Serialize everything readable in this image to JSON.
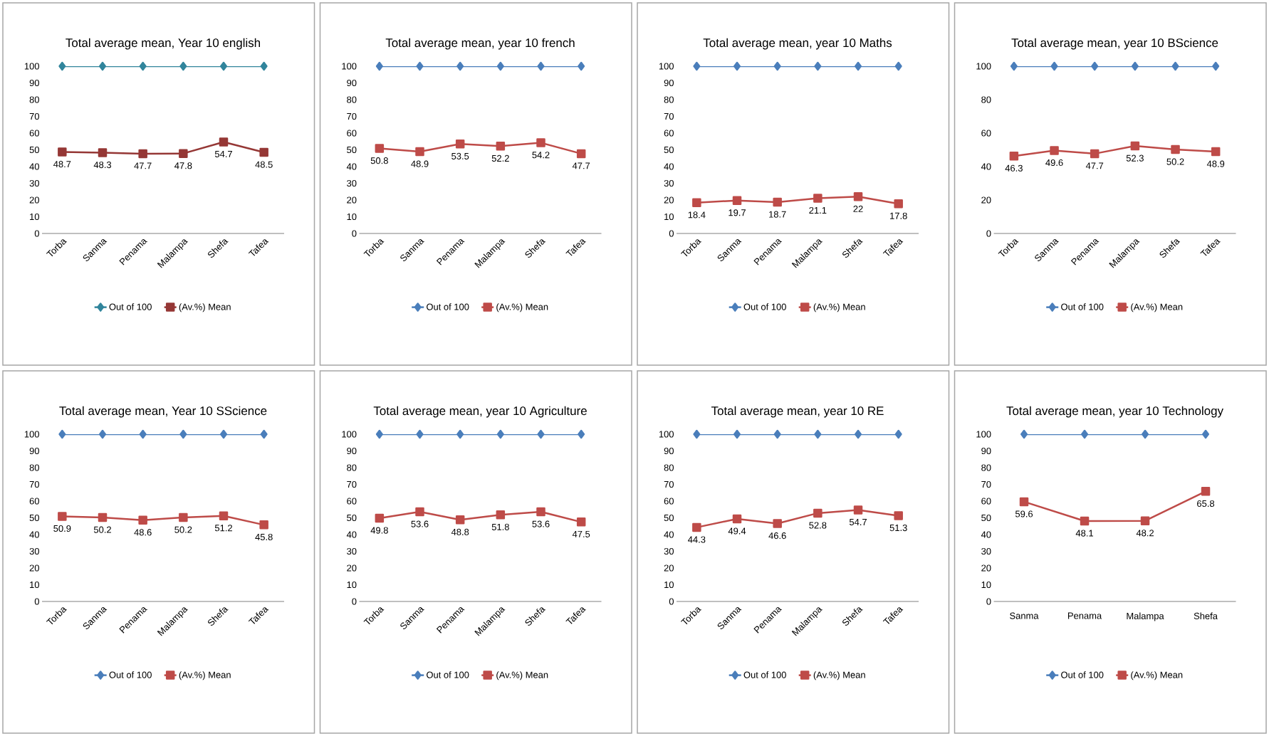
{
  "chart_data": [
    {
      "type": "line",
      "title": "Total average mean, Year 10 english",
      "categories": [
        "Torba",
        "Sanma",
        "Penama",
        "Malampa",
        "Shefa",
        "Tafea"
      ],
      "ylim": [
        0,
        100
      ],
      "yticks": [
        0,
        10,
        20,
        30,
        40,
        50,
        60,
        70,
        80,
        90,
        100
      ],
      "legend": "bottom",
      "series": [
        {
          "name": "Out of 100",
          "color": "#31859c",
          "marker": "diamond",
          "values": [
            100,
            100,
            100,
            100,
            100,
            100
          ]
        },
        {
          "name": "(Av.%) Mean",
          "color": "#953735",
          "marker": "square",
          "values": [
            48.7,
            48.3,
            47.7,
            47.8,
            54.7,
            48.5
          ],
          "value_labels": [
            "48.7",
            "48.3",
            "47.7",
            "47.8",
            "54.7",
            "48.5"
          ]
        }
      ]
    },
    {
      "type": "line",
      "title": "Total average mean, year 10 french",
      "categories": [
        "Torba",
        "Sanma",
        "Penama",
        "Malampa",
        "Shefa",
        "Tafea"
      ],
      "ylim": [
        0,
        100
      ],
      "yticks": [
        0,
        10,
        20,
        30,
        40,
        50,
        60,
        70,
        80,
        90,
        100
      ],
      "legend": "bottom",
      "series": [
        {
          "name": "Out of 100",
          "color": "#4a7ebb",
          "marker": "diamond",
          "values": [
            100,
            100,
            100,
            100,
            100,
            100
          ]
        },
        {
          "name": "(Av.%) Mean",
          "color": "#be4b48",
          "marker": "square",
          "values": [
            50.8,
            48.9,
            53.5,
            52.2,
            54.2,
            47.7
          ],
          "value_labels": [
            "50.8",
            "48.9",
            "53.5",
            "52.2",
            "54.2",
            "47.7"
          ]
        }
      ]
    },
    {
      "type": "line",
      "title": "Total average mean, year 10 Maths",
      "categories": [
        "Torba",
        "Sanma",
        "Penama",
        "Malampa",
        "Shefa",
        "Tafea"
      ],
      "ylim": [
        0,
        100
      ],
      "yticks": [
        0,
        10,
        20,
        30,
        40,
        50,
        60,
        70,
        80,
        90,
        100
      ],
      "legend": "bottom",
      "series": [
        {
          "name": "Out of 100",
          "color": "#4a7ebb",
          "marker": "diamond",
          "values": [
            100,
            100,
            100,
            100,
            100,
            100
          ]
        },
        {
          "name": "(Av.%) Mean",
          "color": "#be4b48",
          "marker": "square",
          "values": [
            18.4,
            19.7,
            18.7,
            21.1,
            22,
            17.8
          ],
          "value_labels": [
            "18.4",
            "19.7",
            "18.7",
            "21.1",
            "22",
            "17.8"
          ]
        }
      ]
    },
    {
      "type": "line",
      "title": "Total average mean, year 10 BScience",
      "categories": [
        "Torba",
        "Sanma",
        "Penama",
        "Malampa",
        "Shefa",
        "Tafea"
      ],
      "ylim": [
        0,
        100
      ],
      "yticks": [
        0,
        20,
        40,
        60,
        80,
        100
      ],
      "legend": "bottom",
      "series": [
        {
          "name": "Out of 100",
          "color": "#4a7ebb",
          "marker": "diamond",
          "values": [
            100,
            100,
            100,
            100,
            100,
            100
          ]
        },
        {
          "name": "(Av.%) Mean",
          "color": "#be4b48",
          "marker": "square",
          "values": [
            46.3,
            49.6,
            47.7,
            52.3,
            50.2,
            48.9
          ],
          "value_labels": [
            "46.3",
            "49.6",
            "47.7",
            "52.3",
            "50.2",
            "48.9"
          ]
        }
      ]
    },
    {
      "type": "line",
      "title": "Total average mean, Year 10 SScience",
      "categories": [
        "Torba",
        "Sanma",
        "Penama",
        "Malampa",
        "Shefa",
        "Tafea"
      ],
      "ylim": [
        0,
        100
      ],
      "yticks": [
        0,
        10,
        20,
        30,
        40,
        50,
        60,
        70,
        80,
        90,
        100
      ],
      "legend": "bottom",
      "series": [
        {
          "name": "Out of 100",
          "color": "#4a7ebb",
          "marker": "diamond",
          "values": [
            100,
            100,
            100,
            100,
            100,
            100
          ]
        },
        {
          "name": "(Av.%) Mean",
          "color": "#be4b48",
          "marker": "square",
          "values": [
            50.9,
            50.2,
            48.6,
            50.2,
            51.2,
            45.8
          ],
          "value_labels": [
            "50.9",
            "50.2",
            "48.6",
            "50.2",
            "51.2",
            "45.8"
          ]
        }
      ]
    },
    {
      "type": "line",
      "title": "Total average mean, year 10 Agriculture",
      "categories": [
        "Torba",
        "Sanma",
        "Penama",
        "Malampa",
        "Shefa",
        "Tafea"
      ],
      "ylim": [
        0,
        100
      ],
      "yticks": [
        0,
        10,
        20,
        30,
        40,
        50,
        60,
        70,
        80,
        90,
        100
      ],
      "legend": "bottom",
      "series": [
        {
          "name": "Out of 100",
          "color": "#4a7ebb",
          "marker": "diamond",
          "values": [
            100,
            100,
            100,
            100,
            100,
            100
          ]
        },
        {
          "name": "(Av.%) Mean",
          "color": "#be4b48",
          "marker": "square",
          "values": [
            49.8,
            53.6,
            48.8,
            51.8,
            53.6,
            47.5
          ],
          "value_labels": [
            "49.8",
            "53.6",
            "48.8",
            "51.8",
            "53.6",
            "47.5"
          ]
        }
      ]
    },
    {
      "type": "line",
      "title": "Total average mean, year 10 RE",
      "categories": [
        "Torba",
        "Sanma",
        "Penama",
        "Malampa",
        "Shefa",
        "Tafea"
      ],
      "ylim": [
        0,
        100
      ],
      "yticks": [
        0,
        10,
        20,
        30,
        40,
        50,
        60,
        70,
        80,
        90,
        100
      ],
      "legend": "bottom",
      "series": [
        {
          "name": "Out of 100",
          "color": "#4a7ebb",
          "marker": "diamond",
          "values": [
            100,
            100,
            100,
            100,
            100,
            100
          ]
        },
        {
          "name": "(Av.%) Mean",
          "color": "#be4b48",
          "marker": "square",
          "values": [
            44.3,
            49.4,
            46.6,
            52.8,
            54.7,
            51.3
          ],
          "value_labels": [
            "44.3",
            "49.4",
            "46.6",
            "52.8",
            "54.7",
            "51.3"
          ]
        }
      ]
    },
    {
      "type": "line",
      "title": "Total average mean, year 10 Technology",
      "categories": [
        "Sanma",
        "Penama",
        "Malampa",
        "Shefa"
      ],
      "ylim": [
        0,
        100
      ],
      "yticks": [
        0,
        10,
        20,
        30,
        40,
        50,
        60,
        70,
        80,
        90,
        100
      ],
      "legend": "bottom",
      "series": [
        {
          "name": "Out of 100",
          "color": "#4a7ebb",
          "marker": "diamond",
          "values": [
            100,
            100,
            100,
            100
          ]
        },
        {
          "name": "(Av.%) Mean",
          "color": "#be4b48",
          "marker": "square",
          "values": [
            59.6,
            48.1,
            48.2,
            65.8
          ],
          "value_labels": [
            "59.6",
            "48.1",
            "48.2",
            "65.8"
          ]
        }
      ]
    }
  ]
}
